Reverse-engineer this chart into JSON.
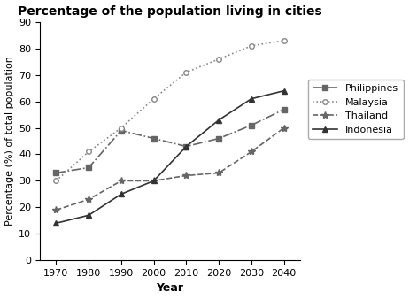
{
  "title": "Percentage of the population living in cities",
  "xlabel": "Year",
  "ylabel": "Percentage (%) of total population",
  "years": [
    1970,
    1980,
    1990,
    2000,
    2010,
    2020,
    2030,
    2040
  ],
  "series": {
    "Philippines": {
      "values": [
        33,
        35,
        49,
        46,
        43,
        46,
        51,
        57
      ],
      "color": "#666666",
      "linestyle": "-.",
      "marker": "s",
      "markersize": 4,
      "markerfacecolor": "#666666"
    },
    "Malaysia": {
      "values": [
        30,
        41,
        50,
        61,
        71,
        76,
        81,
        83
      ],
      "color": "#888888",
      "linestyle": ":",
      "marker": "o",
      "markersize": 4,
      "markerfacecolor": "white"
    },
    "Thailand": {
      "values": [
        19,
        23,
        30,
        30,
        32,
        33,
        41,
        50
      ],
      "color": "#666666",
      "linestyle": "--",
      "marker": "*",
      "markersize": 6,
      "markerfacecolor": "#666666"
    },
    "Indonesia": {
      "values": [
        14,
        17,
        25,
        30,
        43,
        53,
        61,
        64
      ],
      "color": "#333333",
      "linestyle": "-",
      "marker": "^",
      "markersize": 4,
      "markerfacecolor": "#333333"
    }
  },
  "ylim": [
    0,
    90
  ],
  "yticks": [
    0,
    10,
    20,
    30,
    40,
    50,
    60,
    70,
    80,
    90
  ],
  "background_color": "#ffffff",
  "title_fontsize": 10,
  "axis_label_fontsize": 9,
  "tick_fontsize": 8,
  "legend_fontsize": 8
}
